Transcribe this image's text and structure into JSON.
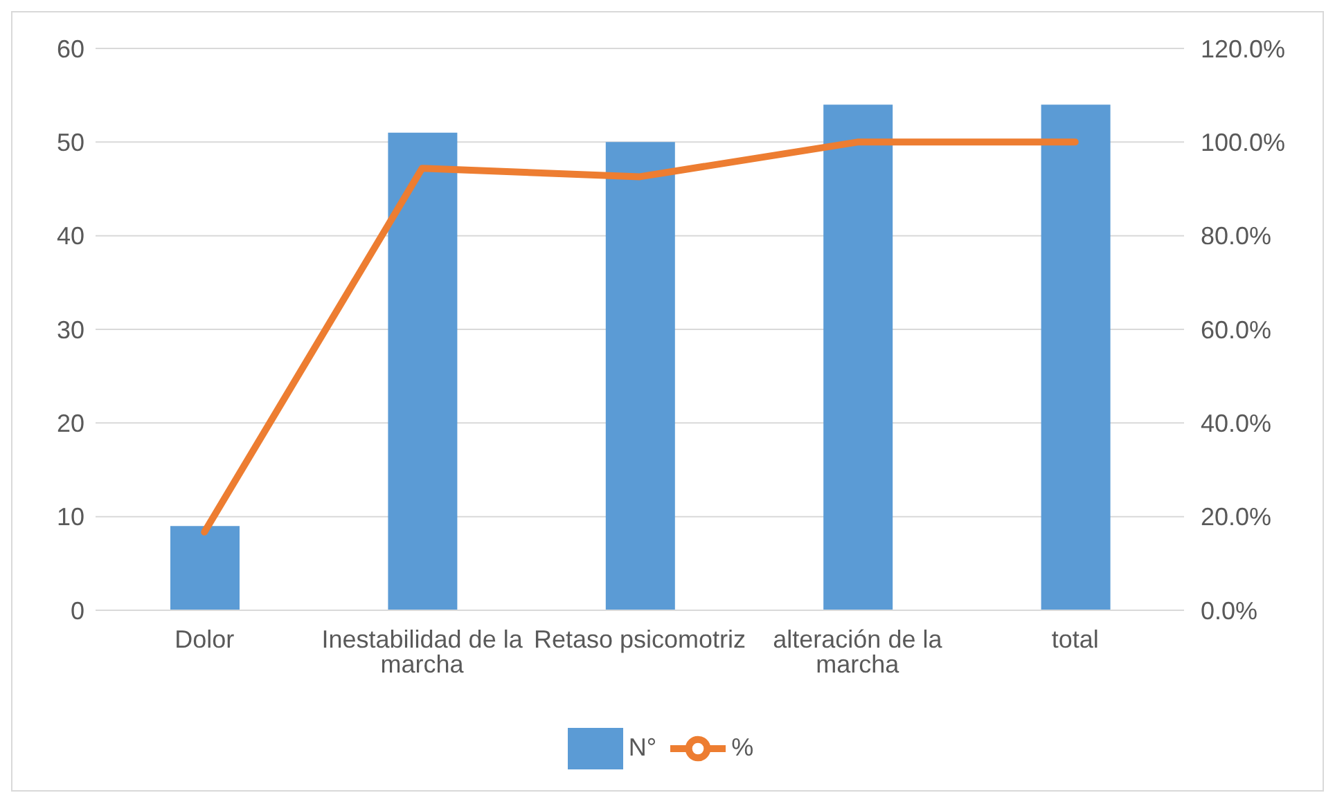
{
  "chart_data": {
    "type": "bar",
    "categories": [
      "Dolor",
      "Inestabilidad de la marcha",
      "Retaso psicomotriz",
      "alteración de la marcha",
      "total"
    ],
    "series": [
      {
        "name": "N°",
        "color": "#5b9bd5",
        "values": [
          9,
          51,
          50,
          54,
          54
        ]
      },
      {
        "name": "%",
        "type": "line",
        "axis": "y2",
        "color": "#ed7d31",
        "values": [
          16.7,
          94.4,
          92.6,
          100,
          100
        ]
      }
    ],
    "ylim": [
      0,
      60
    ],
    "yticks": [
      0,
      10,
      20,
      30,
      40,
      50,
      60
    ],
    "y2lim": [
      0,
      120
    ],
    "y2ticks": [
      {
        "value": 0,
        "label": "0.0%"
      },
      {
        "value": 20,
        "label": "20.0%"
      },
      {
        "value": 40,
        "label": "40.0%"
      },
      {
        "value": 60,
        "label": "60.0%"
      },
      {
        "value": 80,
        "label": "80.0%"
      },
      {
        "value": 100,
        "label": "100.0%"
      },
      {
        "value": 120,
        "label": "120.0%"
      }
    ],
    "grid": "y",
    "legend": "bottom",
    "marker": "none",
    "line_style": "solid"
  }
}
